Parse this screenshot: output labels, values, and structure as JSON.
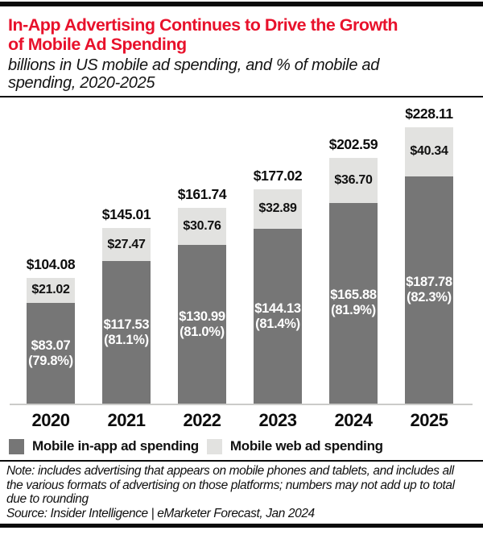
{
  "header": {
    "title_lines": [
      "In-App Advertising Continues to Drive the Growth",
      "of Mobile Ad Spending"
    ],
    "subtitle_lines": [
      "billions in US mobile ad spending, and % of mobile ad",
      "spending, 2020-2025"
    ],
    "title_color": "#e8112b"
  },
  "chart_data": {
    "type": "bar",
    "stacked": true,
    "title": "In-App Advertising Continues to Drive the Growth of Mobile Ad Spending",
    "subtitle": "billions in US mobile ad spending, and % of mobile ad spending, 2020-2025",
    "categories": [
      "2020",
      "2021",
      "2022",
      "2023",
      "2024",
      "2025"
    ],
    "series": [
      {
        "name": "Mobile in-app ad spending",
        "color": "#767676",
        "values": [
          83.07,
          117.53,
          130.99,
          144.13,
          165.88,
          187.78
        ],
        "pct_of_total": [
          79.8,
          81.1,
          81.0,
          81.4,
          81.9,
          82.3
        ]
      },
      {
        "name": "Mobile web ad spending",
        "color": "#e2e2e0",
        "values": [
          21.02,
          27.47,
          30.76,
          32.89,
          36.7,
          40.34
        ]
      }
    ],
    "totals": [
      104.08,
      145.01,
      161.74,
      177.02,
      202.59,
      228.11
    ],
    "value_prefix": "$",
    "unit": "billions (US$)",
    "legend_position": "bottom",
    "grid": false,
    "ylim": [
      0,
      240
    ]
  },
  "legend": {
    "items": [
      {
        "label": "Mobile in-app ad spending",
        "color": "#767676"
      },
      {
        "label": "Mobile web ad spending",
        "color": "#e2e2e0"
      }
    ]
  },
  "footer": {
    "note_lines": [
      "Note: includes advertising that appears on mobile phones and tablets, and includes all",
      "the various formats of advertising on those platforms; numbers may not add up to total",
      "due to rounding"
    ],
    "source": "Source: Insider Intelligence | eMarketer Forecast, Jan 2024"
  }
}
